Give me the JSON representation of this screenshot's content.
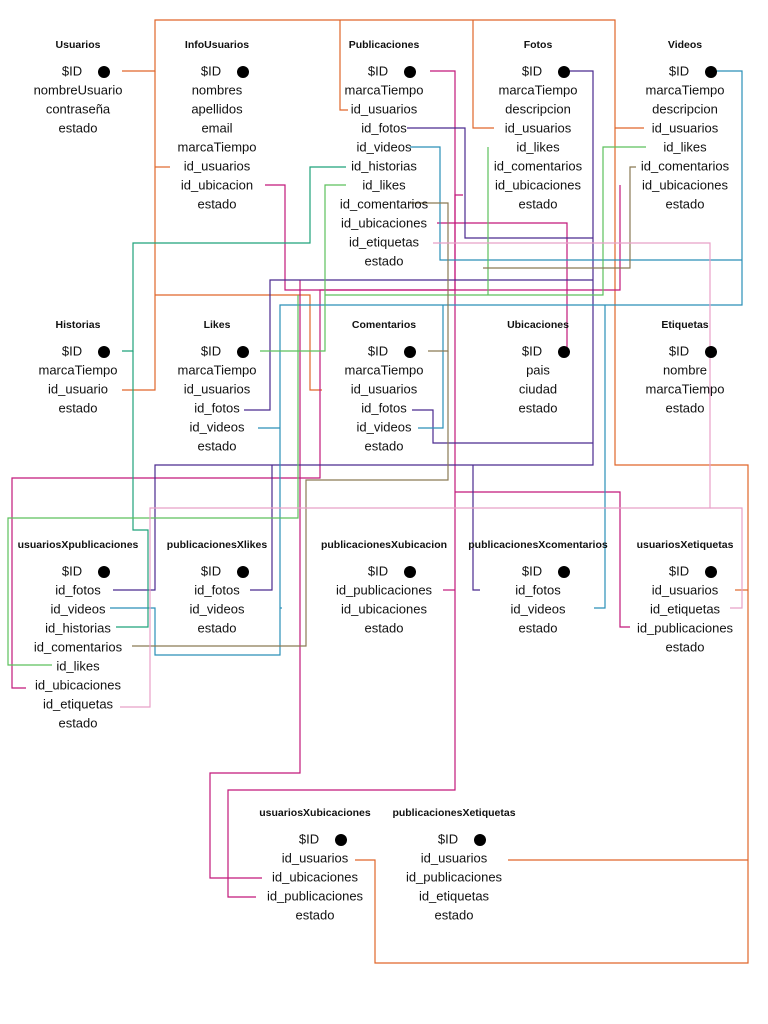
{
  "tables": [
    {
      "title": "Usuarios",
      "fields": [
        "$ID",
        "nombreUsuario",
        "contraseña",
        "estado"
      ]
    },
    {
      "title": "InfoUsuarios",
      "fields": [
        "$ID",
        "nombres",
        "apellidos",
        "email",
        "marcaTiempo",
        "id_usuarios",
        "id_ubicacion",
        "estado"
      ]
    },
    {
      "title": "Publicaciones",
      "fields": [
        "$ID",
        "marcaTiempo",
        "id_usuarios",
        "id_fotos",
        "id_videos",
        "id_historias",
        "id_likes",
        "id_comentarios",
        "id_ubicaciones",
        "id_etiquetas",
        "estado"
      ]
    },
    {
      "title": "Fotos",
      "fields": [
        "$ID",
        "marcaTiempo",
        "descripcion",
        "id_usuarios",
        "id_likes",
        "id_comentarios",
        "id_ubicaciones",
        "estado"
      ]
    },
    {
      "title": "Videos",
      "fields": [
        "$ID",
        "marcaTiempo",
        "descripcion",
        "id_usuarios",
        "id_likes",
        "id_comentarios",
        "id_ubicaciones",
        "estado"
      ]
    },
    {
      "title": "Historias",
      "fields": [
        "$ID",
        "marcaTiempo",
        "id_usuario",
        "estado"
      ]
    },
    {
      "title": "Likes",
      "fields": [
        "$ID",
        "marcaTiempo",
        "id_usuarios",
        "id_fotos",
        "id_videos",
        "estado"
      ]
    },
    {
      "title": "Comentarios",
      "fields": [
        "$ID",
        "marcaTiempo",
        "id_usuarios",
        "id_fotos",
        "id_videos",
        "estado"
      ]
    },
    {
      "title": "Ubicaciones",
      "fields": [
        "$ID",
        "pais",
        "ciudad",
        "estado"
      ]
    },
    {
      "title": "Etiquetas",
      "fields": [
        "$ID",
        "nombre",
        "marcaTiempo",
        "estado"
      ]
    },
    {
      "title": "usuariosXpublicaciones",
      "fields": [
        "$ID",
        "id_fotos",
        "id_videos",
        "id_historias",
        "id_comentarios",
        "id_likes",
        "id_ubicaciones",
        "id_etiquetas",
        "estado"
      ]
    },
    {
      "title": "publicacionesXlikes",
      "fields": [
        "$ID",
        "id_fotos",
        "id_videos",
        "estado"
      ]
    },
    {
      "title": "publicacionesXubicacion",
      "fields": [
        "$ID",
        "id_publicaciones",
        "id_ubicaciones",
        "estado"
      ]
    },
    {
      "title": "publicacionesXcomentarios",
      "fields": [
        "$ID",
        "id_fotos",
        "id_videos",
        "estado"
      ]
    },
    {
      "title": "usuariosXetiquetas",
      "fields": [
        "$ID",
        "id_usuarios",
        "id_etiquetas",
        "id_publicaciones",
        "estado"
      ]
    },
    {
      "title": "usuariosXubicaciones",
      "fields": [
        "$ID",
        "id_usuarios",
        "id_ubicaciones",
        "id_publicaciones",
        "estado"
      ]
    },
    {
      "title": "publicacionesXetiquetas",
      "fields": [
        "$ID",
        "id_usuarios",
        "id_publicaciones",
        "id_etiquetas",
        "estado"
      ]
    }
  ]
}
